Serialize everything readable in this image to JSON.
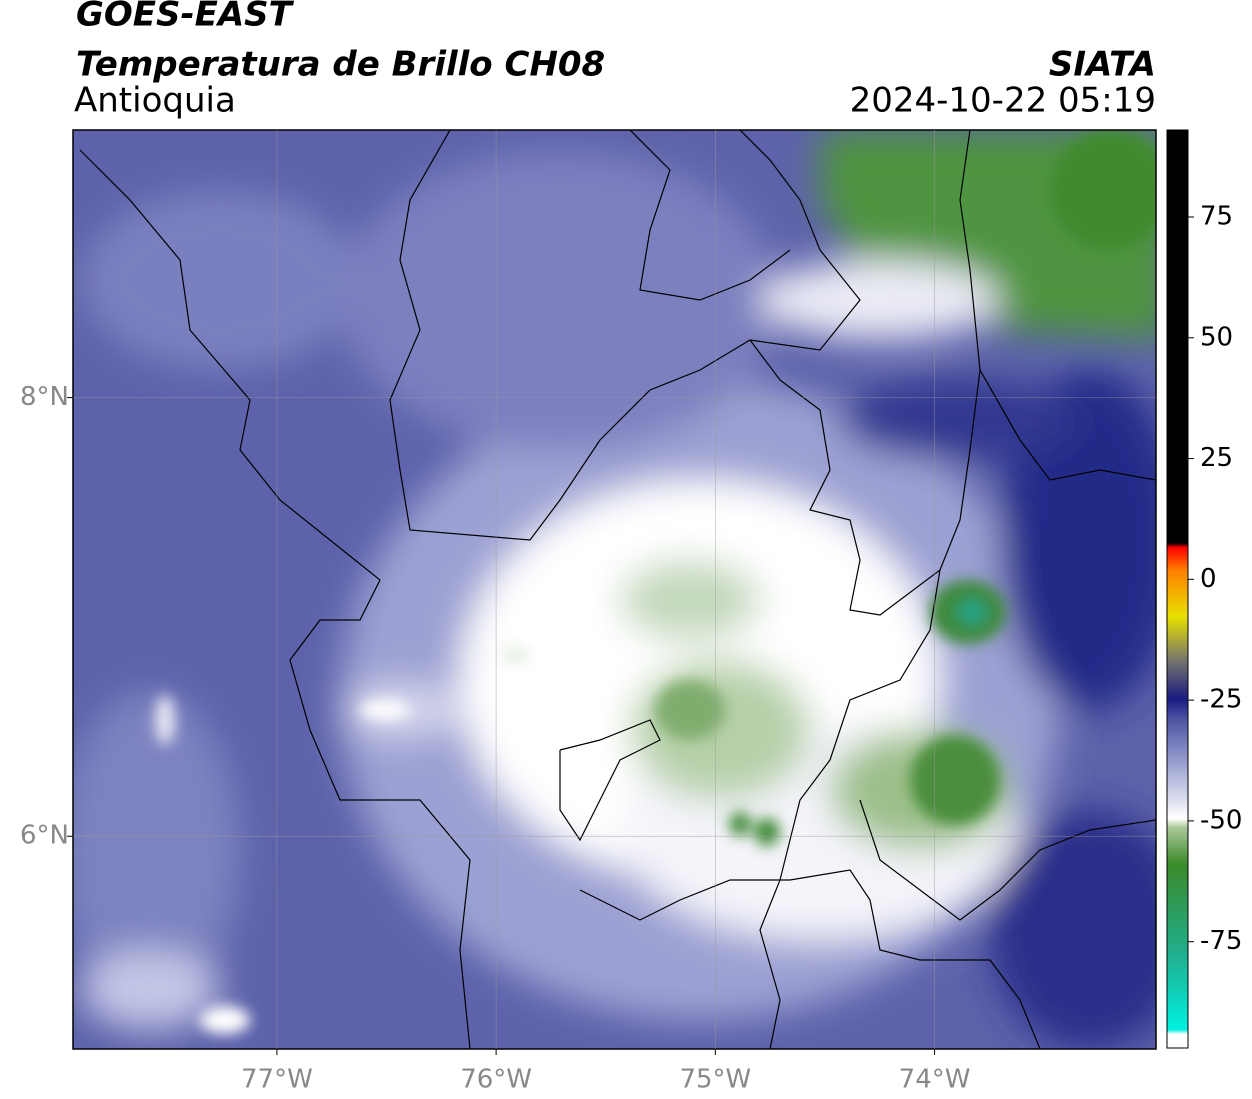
{
  "header": {
    "source": "GOES-EAST",
    "title": "Temperatura de Brillo CH08",
    "region": "Antioquia",
    "org": "SIATA",
    "datetime": "2024-10-22 05:19"
  },
  "map": {
    "xlim": [
      -77.93,
      -72.99
    ],
    "ylim": [
      5.03,
      9.22
    ],
    "xticks": [
      {
        "value": -77,
        "label": "77°W"
      },
      {
        "value": -76,
        "label": "76°W"
      },
      {
        "value": -75,
        "label": "75°W"
      },
      {
        "value": -74,
        "label": "74°W"
      }
    ],
    "yticks": [
      {
        "value": 8,
        "label": "8°N"
      },
      {
        "value": 6,
        "label": "6°N"
      }
    ],
    "grid": true
  },
  "colorbar": {
    "lim": [
      -97,
      93
    ],
    "ticks": [
      75,
      50,
      25,
      0,
      -25,
      -50,
      -75
    ]
  }
}
